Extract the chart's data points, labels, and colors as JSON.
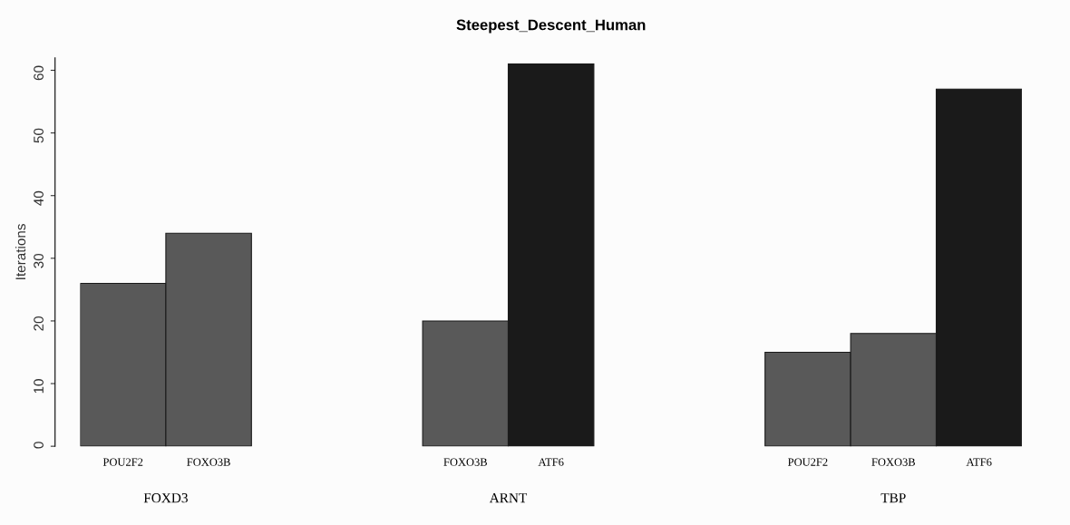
{
  "chart_data": {
    "type": "bar",
    "title": "Steepest_Descent_Human",
    "ylabel": "Iterations",
    "categories": [
      "POU2F2",
      "FOXO3B",
      null,
      null,
      "FOXO3B",
      "ATF6",
      null,
      null,
      "POU2F2",
      "FOXO3B",
      "ATF6"
    ],
    "values": [
      26,
      34,
      null,
      null,
      20,
      61,
      null,
      null,
      15,
      18,
      57
    ],
    "colors": [
      "#595959",
      "#595959",
      null,
      null,
      "#595959",
      "#1a1a1a",
      null,
      null,
      "#595959",
      "#595959",
      "#1a1a1a"
    ],
    "annotations": [
      "FOXD3",
      "ARNT",
      "TBP"
    ],
    "ylim": [
      0,
      62
    ],
    "yticks": [
      0,
      10,
      20,
      30,
      40,
      50,
      60
    ],
    "grid": false,
    "legend": false
  }
}
